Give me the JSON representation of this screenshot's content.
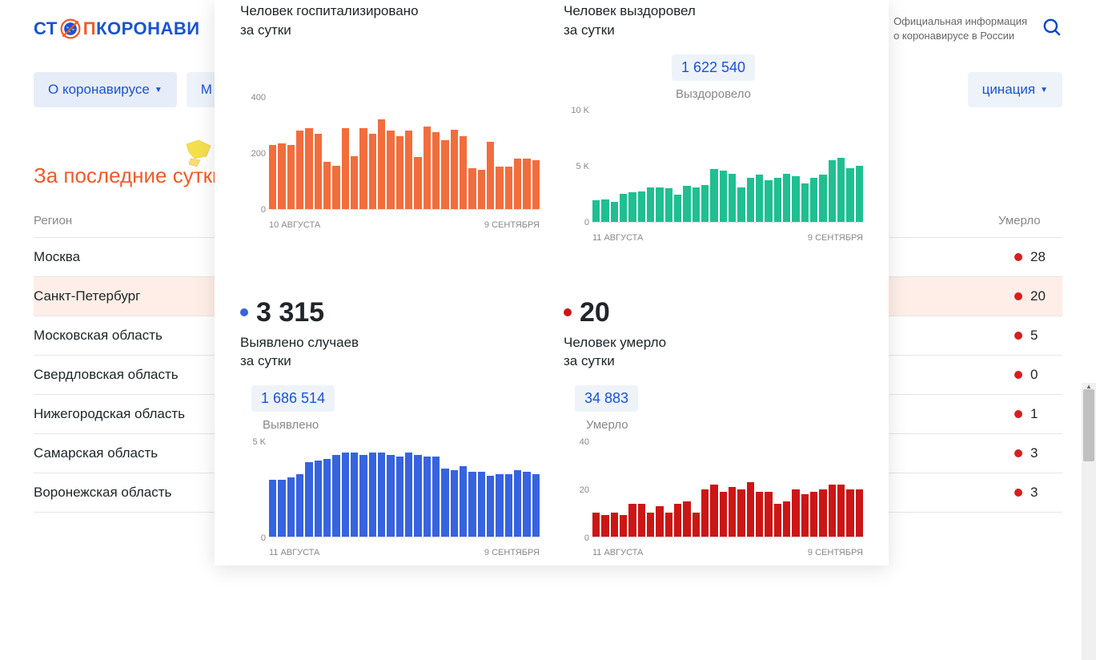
{
  "header": {
    "logo_st": "СТ",
    "logo_p": "П",
    "logo_rest": "КОРОНАВИ",
    "info_line1": "Официальная информация",
    "info_line2": "о коронавирусе в России"
  },
  "nav": {
    "item0": "О коронавирусе",
    "item1": "М",
    "item2": "цинация"
  },
  "section_title": "За последние сутки",
  "table": {
    "col_region": "Регион",
    "col_deaths": "Умерло",
    "rows": [
      {
        "region": "Москва",
        "deaths": "28"
      },
      {
        "region": "Санкт-Петербург",
        "deaths": "20",
        "highlight": true
      },
      {
        "region": "Московская область",
        "deaths": "5"
      },
      {
        "region": "Свердловская область",
        "deaths": "0"
      },
      {
        "region": "Нижегородская область",
        "deaths": "1"
      },
      {
        "region": "Самарская область",
        "deaths": "3"
      },
      {
        "region": "Воронежская область",
        "deaths": "3"
      }
    ]
  },
  "cards": {
    "hospitalized": {
      "title_l1": "Человек госпитализировано",
      "title_l2": "за сутки",
      "color": "#f26d3d",
      "chart": {
        "type": "bar",
        "ylim": [
          0,
          400
        ],
        "yticks": [
          "400",
          "200",
          "0"
        ],
        "xstart": "10 АВГУСТА",
        "xend": "9 СЕНТЯБРЯ",
        "bar_color": "#f26d3d",
        "values": [
          230,
          235,
          230,
          280,
          290,
          270,
          170,
          155,
          290,
          190,
          290,
          270,
          320,
          280,
          260,
          280,
          185,
          295,
          275,
          245,
          285,
          260,
          145,
          140,
          240,
          150,
          150,
          180,
          180,
          175
        ]
      }
    },
    "recovered": {
      "title_l1": "Человек выздоровел",
      "title_l2": "за сутки",
      "total": "1 622 540",
      "total_label": "Выздоровело",
      "color": "#1fbf92",
      "chart": {
        "type": "bar",
        "ylim": [
          0,
          10000
        ],
        "yticks": [
          "10 K",
          "5 K",
          "0"
        ],
        "xstart": "11 АВГУСТА",
        "xend": "9 СЕНТЯБРЯ",
        "bar_color": "#1fbf92",
        "values": [
          1900,
          2000,
          1800,
          2500,
          2600,
          2700,
          3100,
          3100,
          3000,
          2400,
          3200,
          3100,
          3300,
          4700,
          4600,
          4300,
          3100,
          3900,
          4200,
          3700,
          3900,
          4300,
          4100,
          3400,
          3900,
          4200,
          5500,
          5700,
          4800,
          5000
        ]
      }
    },
    "detected": {
      "value": "3 315",
      "title_l1": "Выявлено случаев",
      "title_l2": "за сутки",
      "total": "1 686 514",
      "total_label": "Выявлено",
      "color": "#3763e0",
      "chart": {
        "type": "bar",
        "ylim": [
          0,
          5000
        ],
        "yticks": [
          "5 K",
          "0"
        ],
        "xstart": "11 АВГУСТА",
        "xend": "9 СЕНТЯБРЯ",
        "bar_color": "#3763e0",
        "values": [
          3000,
          3000,
          3100,
          3300,
          3900,
          4000,
          4100,
          4300,
          4400,
          4400,
          4300,
          4400,
          4400,
          4300,
          4200,
          4400,
          4300,
          4200,
          4200,
          3600,
          3500,
          3700,
          3400,
          3400,
          3200,
          3300,
          3300,
          3500,
          3400,
          3300
        ]
      }
    },
    "deaths": {
      "value": "20",
      "title_l1": "Человек умерло",
      "title_l2": "за сутки",
      "total": "34 883",
      "total_label": "Умерло",
      "color": "#cc1616",
      "chart": {
        "type": "bar",
        "ylim": [
          0,
          40
        ],
        "yticks": [
          "40",
          "20",
          "0"
        ],
        "xstart": "11 АВГУСТА",
        "xend": "9 СЕНТЯБРЯ",
        "bar_color": "#cc1616",
        "values": [
          10,
          9,
          10,
          9,
          14,
          14,
          10,
          13,
          10,
          14,
          15,
          10,
          20,
          22,
          19,
          21,
          20,
          23,
          19,
          19,
          14,
          15,
          20,
          18,
          19,
          20,
          22,
          22,
          20,
          20
        ]
      }
    }
  },
  "colors": {
    "blue": "#1a53d1",
    "orange": "#f05a28",
    "nav_bg": "#eef3fa",
    "death_dot": "#d61f1f"
  }
}
